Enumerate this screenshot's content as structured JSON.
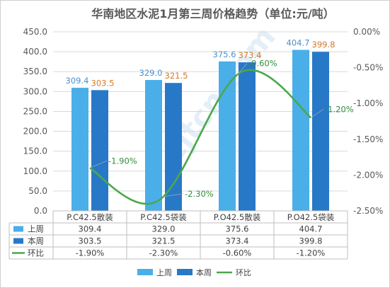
{
  "chart_data": {
    "type": "bar",
    "title": "华南地区水泥1月第三周价格趋势（单位:元/吨）",
    "categories": [
      "P.C42.5散装",
      "P.C42.5袋装",
      "P.O42.5散装",
      "P.O42.5袋装"
    ],
    "series": [
      {
        "name": "上周",
        "type": "bar",
        "axis": "left",
        "color": "#4aaee8",
        "values": [
          309.4,
          329.0,
          375.6,
          404.7
        ],
        "labels": [
          "309.4",
          "329.0",
          "375.6",
          "404.7"
        ]
      },
      {
        "name": "本周",
        "type": "bar",
        "axis": "left",
        "color": "#2878c8",
        "values": [
          303.5,
          321.5,
          373.4,
          399.8
        ],
        "labels": [
          "303.5",
          "321.5",
          "373.4",
          "399.8"
        ]
      },
      {
        "name": "环比",
        "type": "line",
        "axis": "right",
        "color": "#4aa84a",
        "values": [
          -1.9,
          -2.3,
          -0.6,
          -1.2
        ],
        "labels": [
          "-1.90%",
          "-2.30%",
          "-0.60%",
          "-1.20%"
        ]
      }
    ],
    "y_left": {
      "min": 0,
      "max": 450,
      "step": 50,
      "ticks": [
        "0.0",
        "50.0",
        "100.0",
        "150.0",
        "200.0",
        "250.0",
        "300.0",
        "350.0",
        "400.0",
        "450.0"
      ]
    },
    "y_right": {
      "min": -2.5,
      "max": 0,
      "step": 0.5,
      "ticks": [
        "-2.50%",
        "-2.00%",
        "-1.50%",
        "-1.00%",
        "-0.50%",
        "0.00%"
      ]
    },
    "data_table": true,
    "gridlines": true,
    "legend_position": "bottom",
    "label_colors": {
      "prev": "#4a8fcc",
      "curr": "#d07a2a",
      "ratio": "#2f8f3a"
    },
    "watermark_text": "zjtcn.com"
  }
}
